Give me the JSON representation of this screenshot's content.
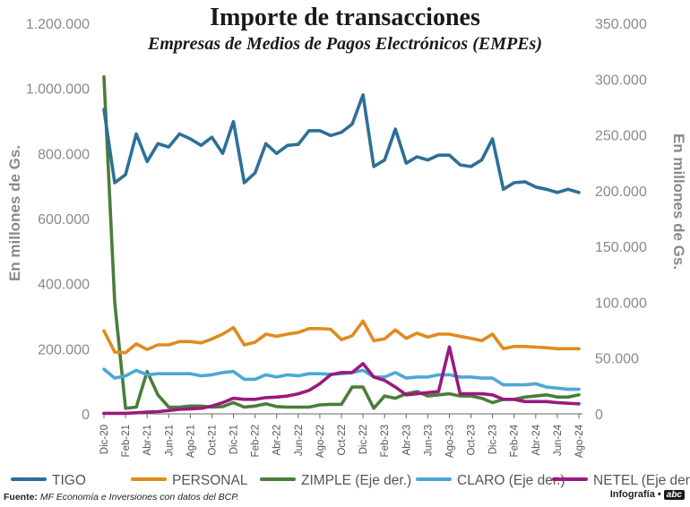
{
  "header": {
    "title": "Importe de transacciones",
    "subtitle": "Empresas de Medios de Pagos Electrónicos (EMPEs)"
  },
  "footer": {
    "source_label": "Fuente:",
    "source_text": "MF Economía e Inversiones con datos del BCP.",
    "credit": "Infografía •",
    "logo": "abc"
  },
  "chart_data": {
    "type": "line",
    "title": "Importe de transacciones",
    "subtitle": "Empresas de Medios de Pagos Electrónicos (EMPEs)",
    "ylabel": "En millones de Gs.",
    "y2label": "En millones de Gs.",
    "ylim": [
      0,
      1200000
    ],
    "y2lim": [
      0,
      350000
    ],
    "yticks": [
      "0",
      "200.000",
      "400.000",
      "600.000",
      "800.000",
      "1.000.000",
      "1.200.000"
    ],
    "y2ticks": [
      "0",
      "50.000",
      "100.000",
      "150.000",
      "200.000",
      "250.000",
      "300.000",
      "350.000"
    ],
    "grid": false,
    "legend": "bottom",
    "x": [
      "Dic-20",
      "Ene-21",
      "Feb-21",
      "Mar-21",
      "Abr-21",
      "May-21",
      "Jun-21",
      "Jul-21",
      "Ago-21",
      "Sep-21",
      "Oct-21",
      "Nov-21",
      "Dic-21",
      "Ene-22",
      "Feb-22",
      "Mar-22",
      "Abr-22",
      "May-22",
      "Jun-22",
      "Jul-22",
      "Ago-22",
      "Sep-22",
      "Oct-22",
      "Nov-22",
      "Dic-22",
      "Ene-23",
      "Feb-23",
      "Mar-23",
      "Abr-23",
      "May-23",
      "Jun-23",
      "Jul-23",
      "Ago-23",
      "Sep-23",
      "Oct-23",
      "Nov-23",
      "Dic-23",
      "Ene-24",
      "Feb-24",
      "Mar-24",
      "Abr-24",
      "May-24",
      "Jun-24",
      "Jul-24",
      "Ago-24"
    ],
    "xtick_labels": [
      "Dic-20",
      "Feb-21",
      "Abr-21",
      "Jun-21",
      "Ago-21",
      "Oct-21",
      "Dic-21",
      "Feb-22",
      "Abr-22",
      "Jun-22",
      "Ago-22",
      "Oct-22",
      "Dic-22",
      "Feb-23",
      "Abr-23",
      "Jun-23",
      "Ago-23",
      "Oct-23",
      "Dic-23",
      "Feb-24",
      "Abr-24",
      "Jun-24",
      "Ago-24"
    ],
    "series": [
      {
        "name": "TIGO",
        "axis": "left",
        "color": "#2e6f97",
        "values": [
          935000,
          710000,
          735000,
          860000,
          775000,
          830000,
          820000,
          860000,
          845000,
          825000,
          850000,
          800000,
          898000,
          710000,
          740000,
          830000,
          800000,
          825000,
          828000,
          870000,
          870000,
          855000,
          865000,
          890000,
          980000,
          760000,
          780000,
          875000,
          770000,
          790000,
          780000,
          795000,
          795000,
          765000,
          760000,
          780000,
          845000,
          690000,
          710000,
          713000,
          697000,
          690000,
          680000,
          690000,
          680000
        ]
      },
      {
        "name": "PERSONAL",
        "axis": "left",
        "color": "#e08b1e",
        "values": [
          255000,
          190000,
          188000,
          215000,
          198000,
          212000,
          212000,
          222000,
          222000,
          218000,
          230000,
          245000,
          265000,
          212000,
          220000,
          245000,
          238000,
          245000,
          250000,
          262000,
          262000,
          260000,
          228000,
          240000,
          285000,
          225000,
          230000,
          258000,
          232000,
          248000,
          236000,
          245000,
          245000,
          238000,
          232000,
          225000,
          245000,
          200000,
          207000,
          207000,
          205000,
          203000,
          200000,
          200000,
          200000
        ]
      },
      {
        "name": "ZIMPLE (Eje der.)",
        "axis": "right",
        "color": "#4a7d3a",
        "values": [
          302000,
          100000,
          5000,
          6000,
          38000,
          17000,
          6000,
          6000,
          7000,
          7000,
          6000,
          6500,
          10000,
          6000,
          7000,
          9000,
          6500,
          6000,
          6000,
          6000,
          8000,
          8500,
          8500,
          24000,
          24000,
          5000,
          16000,
          14000,
          18000,
          20000,
          16000,
          17000,
          18000,
          16000,
          16000,
          14000,
          10000,
          13000,
          13000,
          15000,
          16000,
          17000,
          15000,
          15000,
          17000
        ]
      },
      {
        "name": "CLARO (Eje der.)",
        "axis": "right",
        "color": "#4ba8d6",
        "values": [
          40000,
          32000,
          34000,
          39000,
          35000,
          36000,
          36000,
          36000,
          36000,
          34000,
          35000,
          37000,
          38000,
          31000,
          31000,
          35000,
          33000,
          35000,
          34000,
          36000,
          36000,
          35500,
          36000,
          37000,
          39000,
          33000,
          33000,
          37000,
          32000,
          33000,
          33000,
          35000,
          35000,
          33000,
          33000,
          32000,
          32000,
          26000,
          26000,
          26000,
          27000,
          24000,
          23000,
          22000,
          22000
        ]
      },
      {
        "name": "NETEL (Eje der.)",
        "axis": "right",
        "color": "#9a1a7e",
        "values": [
          500,
          500,
          500,
          1000,
          1500,
          2000,
          3000,
          4000,
          4500,
          5000,
          7000,
          10000,
          14000,
          13000,
          13000,
          14500,
          15000,
          16000,
          18000,
          21000,
          27000,
          35000,
          37000,
          37000,
          45000,
          33000,
          30000,
          24000,
          17000,
          18000,
          19000,
          20000,
          60000,
          18000,
          18000,
          18000,
          17000,
          13000,
          13000,
          11000,
          11000,
          11000,
          10000,
          9500,
          9000
        ]
      }
    ]
  }
}
